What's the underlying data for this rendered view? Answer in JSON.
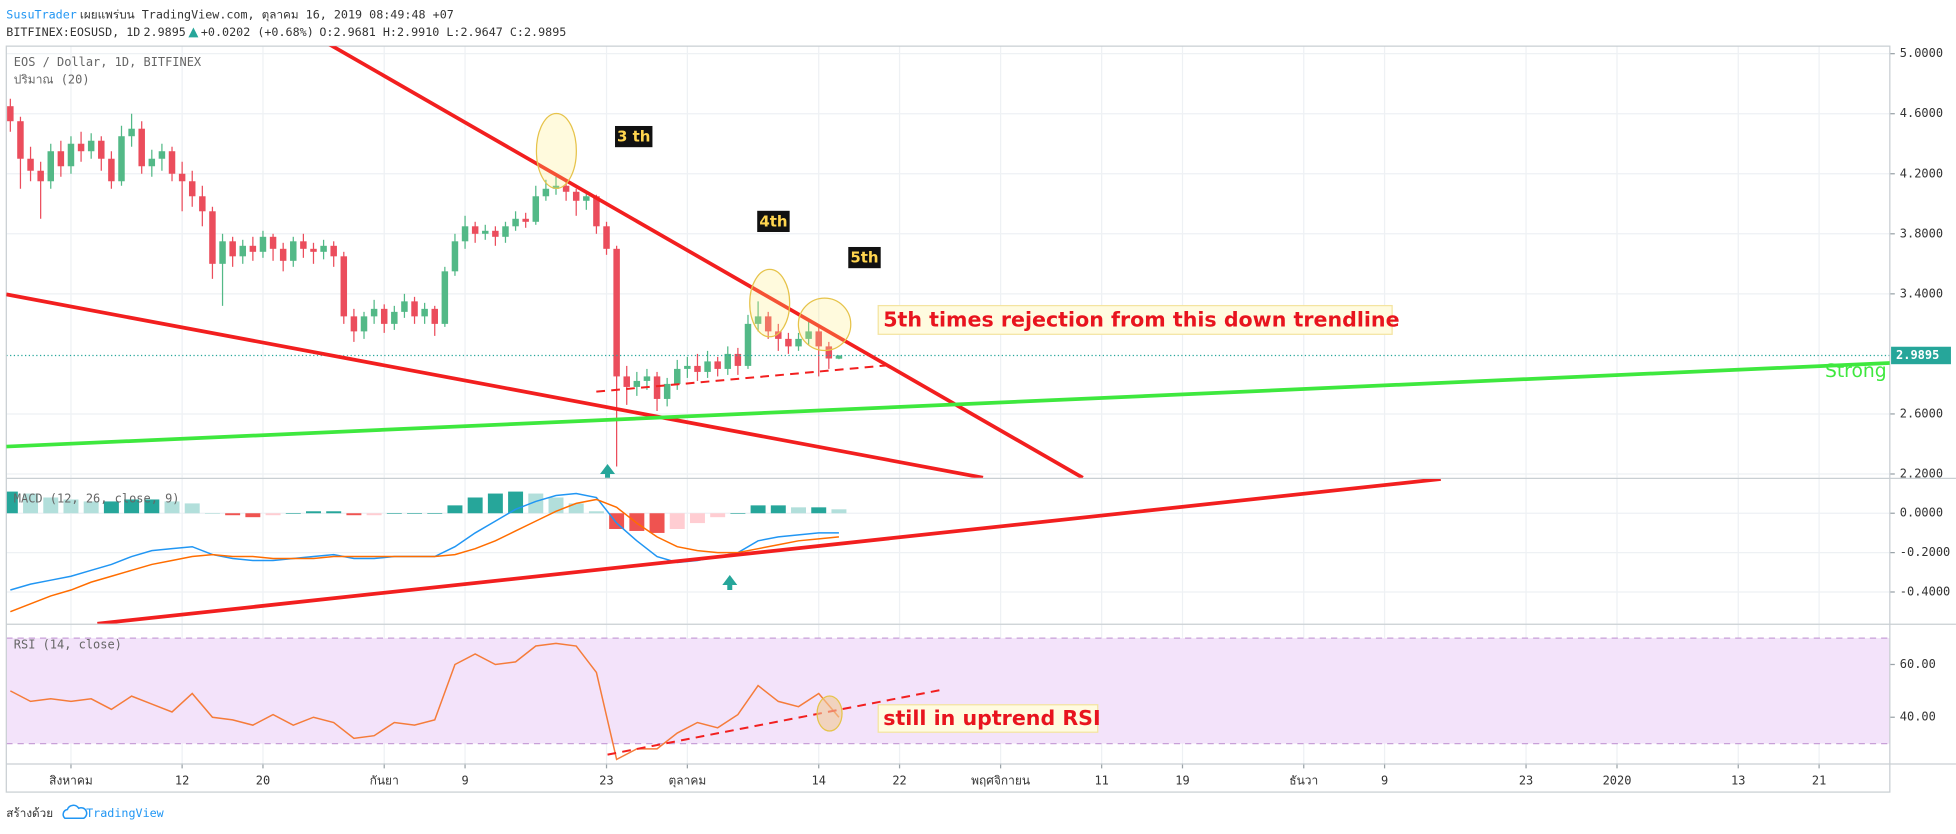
{
  "header": {
    "author": "SusuTrader",
    "published": "เผยแพร่บน TradingView.com, ตุลาคม 16, 2019 08:49:48 +07",
    "symbol": "BITFINEX:EOSUSD, 1D",
    "price": "2.9895",
    "change": "+0.0202 (+0.68%)",
    "ohlc": "O:2.9681 H:2.9910 L:2.9647 C:2.9895"
  },
  "chart_data": [
    {
      "type": "candlestick",
      "title": "EOS / Dollar, 1D, BITFINEX",
      "subtitle": "ปริมาณ (20)",
      "up_color": "#53b987",
      "down_color": "#eb4d5c",
      "x": [
        -6,
        -5,
        -4,
        -3,
        -2,
        -1,
        0,
        1,
        2,
        3,
        4,
        5,
        6,
        7,
        8,
        9,
        10,
        11,
        12,
        13,
        14,
        15,
        16,
        17,
        18,
        19,
        20,
        21,
        22,
        23,
        24,
        25,
        26,
        27,
        28,
        29,
        30,
        31,
        32,
        33,
        34,
        35,
        36,
        37,
        38,
        39,
        40,
        41,
        42,
        43,
        44,
        45,
        46,
        47,
        48,
        49,
        50,
        51,
        52,
        53,
        54,
        55,
        56,
        57,
        58,
        59,
        60,
        61,
        62,
        63,
        64,
        65,
        66,
        67,
        68,
        69,
        70,
        71,
        72,
        73,
        74,
        75,
        76
      ],
      "open": [
        4.65,
        4.55,
        4.3,
        4.22,
        4.15,
        4.35,
        4.25,
        4.4,
        4.35,
        4.42,
        4.3,
        4.15,
        4.45,
        4.5,
        4.25,
        4.3,
        4.35,
        4.2,
        4.15,
        4.05,
        3.95,
        3.6,
        3.75,
        3.65,
        3.72,
        3.68,
        3.78,
        3.7,
        3.62,
        3.75,
        3.7,
        3.68,
        3.72,
        3.65,
        3.25,
        3.15,
        3.25,
        3.3,
        3.2,
        3.28,
        3.35,
        3.25,
        3.3,
        3.2,
        3.55,
        3.75,
        3.85,
        3.8,
        3.82,
        3.78,
        3.85,
        3.9,
        3.88,
        4.05,
        4.1,
        4.12,
        4.08,
        4.02,
        4.05,
        3.85,
        3.7,
        2.85,
        2.78,
        2.82,
        2.85,
        2.7,
        2.8,
        2.9,
        2.92,
        2.88,
        2.95,
        2.9,
        3.0,
        2.92,
        3.2,
        3.25,
        3.15,
        3.1,
        3.05,
        3.1,
        3.15,
        3.05,
        2.9681
      ],
      "high": [
        4.7,
        4.58,
        4.38,
        4.28,
        4.4,
        4.42,
        4.45,
        4.48,
        4.47,
        4.45,
        4.35,
        4.52,
        4.6,
        4.55,
        4.36,
        4.4,
        4.38,
        4.28,
        4.22,
        4.12,
        3.98,
        3.8,
        3.78,
        3.76,
        3.78,
        3.82,
        3.8,
        3.74,
        3.78,
        3.8,
        3.74,
        3.76,
        3.75,
        3.68,
        3.3,
        3.28,
        3.36,
        3.33,
        3.32,
        3.4,
        3.38,
        3.34,
        3.32,
        3.58,
        3.8,
        3.92,
        3.88,
        3.86,
        3.85,
        3.88,
        3.95,
        3.94,
        4.12,
        4.16,
        4.18,
        4.15,
        4.1,
        4.08,
        4.06,
        3.88,
        3.72,
        2.92,
        2.88,
        2.9,
        2.88,
        2.84,
        2.96,
        2.98,
        3.0,
        3.02,
        2.98,
        3.05,
        3.04,
        3.26,
        3.35,
        3.28,
        3.2,
        3.14,
        3.14,
        3.22,
        3.18,
        3.08,
        2.991
      ],
      "low": [
        4.48,
        4.1,
        4.15,
        3.9,
        4.1,
        4.18,
        4.2,
        4.28,
        4.3,
        4.22,
        4.1,
        4.12,
        4.38,
        4.2,
        4.18,
        4.22,
        4.15,
        3.95,
        3.98,
        3.85,
        3.5,
        3.32,
        3.58,
        3.6,
        3.62,
        3.64,
        3.62,
        3.55,
        3.58,
        3.64,
        3.6,
        3.63,
        3.58,
        3.2,
        3.08,
        3.1,
        3.2,
        3.14,
        3.16,
        3.24,
        3.2,
        3.2,
        3.12,
        3.18,
        3.52,
        3.7,
        3.74,
        3.76,
        3.72,
        3.74,
        3.82,
        3.84,
        3.86,
        4.02,
        4.06,
        4.02,
        3.92,
        3.96,
        3.8,
        3.66,
        2.25,
        2.66,
        2.72,
        2.76,
        2.62,
        2.65,
        2.76,
        2.84,
        2.82,
        2.84,
        2.85,
        2.86,
        2.86,
        2.9,
        3.15,
        3.1,
        3.02,
        3.0,
        3.02,
        3.06,
        2.85,
        2.9,
        2.9647
      ],
      "close": [
        4.55,
        4.3,
        4.22,
        4.15,
        4.35,
        4.25,
        4.4,
        4.35,
        4.42,
        4.3,
        4.15,
        4.45,
        4.5,
        4.25,
        4.3,
        4.35,
        4.2,
        4.15,
        4.05,
        3.95,
        3.6,
        3.75,
        3.65,
        3.72,
        3.68,
        3.78,
        3.7,
        3.62,
        3.75,
        3.7,
        3.68,
        3.72,
        3.65,
        3.25,
        3.15,
        3.25,
        3.3,
        3.2,
        3.28,
        3.35,
        3.25,
        3.3,
        3.2,
        3.55,
        3.75,
        3.85,
        3.8,
        3.82,
        3.78,
        3.85,
        3.9,
        3.88,
        4.05,
        4.1,
        4.12,
        4.08,
        4.02,
        4.05,
        3.85,
        3.7,
        2.85,
        2.78,
        2.82,
        2.85,
        2.7,
        2.8,
        2.9,
        2.92,
        2.88,
        2.95,
        2.9,
        3.0,
        2.92,
        3.2,
        3.25,
        3.15,
        3.1,
        3.05,
        3.1,
        3.15,
        3.05,
        2.9693,
        2.9895
      ],
      "xlim": [
        -6.4,
        180
      ],
      "ylim": [
        2.175,
        5.05
      ],
      "yticks": [
        {
          "value": 2.2,
          "label": "2.2000"
        },
        {
          "value": 2.6,
          "label": "2.6000"
        },
        {
          "value": 3.4,
          "label": "3.4000"
        },
        {
          "value": 3.8,
          "label": "3.8000"
        },
        {
          "value": 4.2,
          "label": "4.2000"
        },
        {
          "value": 4.6,
          "label": "4.6000"
        },
        {
          "value": 5.0,
          "label": "5.0000"
        }
      ],
      "grid": true,
      "annotations": {
        "wave3": "3 th",
        "wave4": "4th",
        "wave5": "5th",
        "rejection": "5th times rejection from this  down trendline",
        "support": "Strong"
      }
    },
    {
      "type": "macd",
      "title": "MACD (12, 26, close, 9)",
      "x": [
        -6,
        -4,
        -2,
        0,
        2,
        4,
        6,
        8,
        10,
        12,
        14,
        16,
        18,
        20,
        22,
        24,
        26,
        28,
        30,
        32,
        34,
        36,
        38,
        40,
        42,
        44,
        46,
        48,
        50,
        52,
        54,
        56,
        58,
        60,
        62,
        64,
        66,
        68,
        70,
        72,
        74,
        76
      ],
      "series": [
        {
          "color": "#2196f3",
          "values": [
            -0.39,
            -0.36,
            -0.34,
            -0.32,
            -0.29,
            -0.26,
            -0.22,
            -0.19,
            -0.18,
            -0.17,
            -0.21,
            -0.23,
            -0.24,
            -0.24,
            -0.23,
            -0.22,
            -0.21,
            -0.23,
            -0.23,
            -0.22,
            -0.22,
            -0.22,
            -0.17,
            -0.1,
            -0.04,
            0.02,
            0.06,
            0.09,
            0.1,
            0.08,
            -0.05,
            -0.14,
            -0.22,
            -0.25,
            -0.24,
            -0.22,
            -0.2,
            -0.14,
            -0.12,
            -0.11,
            -0.1,
            -0.1
          ]
        },
        {
          "color": "#ff6d00",
          "values": [
            -0.5,
            -0.46,
            -0.42,
            -0.39,
            -0.35,
            -0.32,
            -0.29,
            -0.26,
            -0.24,
            -0.22,
            -0.21,
            -0.22,
            -0.22,
            -0.23,
            -0.23,
            -0.23,
            -0.22,
            -0.22,
            -0.22,
            -0.22,
            -0.22,
            -0.22,
            -0.21,
            -0.18,
            -0.14,
            -0.09,
            -0.04,
            0.01,
            0.05,
            0.07,
            0.03,
            -0.05,
            -0.12,
            -0.17,
            -0.19,
            -0.2,
            -0.2,
            -0.18,
            -0.16,
            -0.14,
            -0.13,
            -0.12
          ]
        }
      ],
      "histogram": {
        "colors": [
          "#26a69a",
          "#b2dfdb",
          "#ffcdd2",
          "#ef5350"
        ],
        "values": [
          0.11,
          0.1,
          0.08,
          0.07,
          0.06,
          0.06,
          0.07,
          0.07,
          0.06,
          0.05,
          0.0,
          -0.01,
          -0.02,
          -0.01,
          0.0,
          0.01,
          0.01,
          -0.01,
          -0.01,
          0.0,
          0.0,
          0.0,
          0.04,
          0.08,
          0.1,
          0.11,
          0.1,
          0.08,
          0.05,
          0.01,
          -0.08,
          -0.09,
          -0.1,
          -0.08,
          -0.05,
          -0.02,
          0.0,
          0.04,
          0.04,
          0.03,
          0.03,
          0.02
        ]
      },
      "xlim": [
        -6.4,
        180
      ],
      "ylim": [
        -0.561,
        0.174
      ],
      "yticks": [
        {
          "value": -0.4,
          "label": "-0.4000"
        },
        {
          "value": -0.2,
          "label": "-0.2000"
        },
        {
          "value": 0,
          "label": "0.0000"
        }
      ],
      "grid": true
    },
    {
      "type": "line",
      "title": "RSI (14, close)",
      "x": [
        -6,
        -4,
        -2,
        0,
        2,
        4,
        6,
        8,
        10,
        12,
        14,
        16,
        18,
        20,
        22,
        24,
        26,
        28,
        30,
        32,
        34,
        36,
        38,
        40,
        42,
        44,
        46,
        48,
        50,
        52,
        54,
        56,
        58,
        60,
        62,
        64,
        66,
        68,
        70,
        72,
        74,
        76
      ],
      "series": [
        {
          "color": "#f57c3a",
          "values": [
            50,
            46,
            47,
            46,
            47,
            43,
            48,
            45,
            42,
            49,
            40,
            39,
            37,
            41,
            37,
            40,
            38,
            32,
            33,
            38,
            37,
            39,
            60,
            64,
            60,
            61,
            67,
            68,
            67,
            57,
            24,
            28,
            28,
            34,
            38,
            36,
            41,
            52,
            46,
            44,
            49,
            40
          ]
        }
      ],
      "band": [
        30,
        70
      ],
      "band_color": "#f3e3fa",
      "xlim": [
        -6.4,
        180
      ],
      "ylim": [
        22.5,
        75
      ],
      "yticks": [
        {
          "value": 40,
          "label": "40.00"
        },
        {
          "value": 60,
          "label": "60.00"
        }
      ],
      "xticks": [
        {
          "value": 0,
          "label": "สิงหาคม"
        },
        {
          "value": 11,
          "label": "12"
        },
        {
          "value": 19,
          "label": "20"
        },
        {
          "value": 31,
          "label": "กันยา"
        },
        {
          "value": 39,
          "label": "9"
        },
        {
          "value": 53,
          "label": "23"
        },
        {
          "value": 61,
          "label": "ตุลาคม"
        },
        {
          "value": 74,
          "label": "14"
        },
        {
          "value": 82,
          "label": "22"
        },
        {
          "value": 92,
          "label": "พฤศจิกายน"
        },
        {
          "value": 102,
          "label": "11"
        },
        {
          "value": 110,
          "label": "19"
        },
        {
          "value": 122,
          "label": "ธันวา"
        },
        {
          "value": 130,
          "label": "9"
        },
        {
          "value": 144,
          "label": "23"
        },
        {
          "value": 153,
          "label": "2020"
        },
        {
          "value": 165,
          "label": "13"
        },
        {
          "value": 173,
          "label": "21"
        }
      ],
      "grid": true,
      "annotation": "still in uptrend RSI"
    }
  ],
  "footer": {
    "made_with": "สร้างด้วย",
    "brand": "TradingView"
  }
}
